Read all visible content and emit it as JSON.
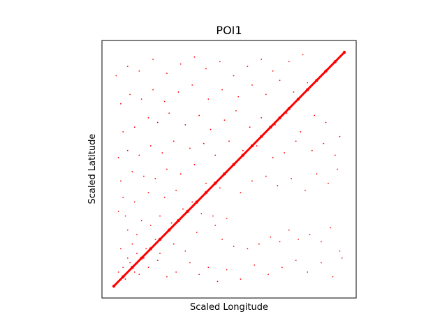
{
  "chart_data": {
    "type": "scatter",
    "title": "POI1",
    "xlabel": "Scaled Longitude",
    "ylabel": "Scaled Latitude",
    "xlim": [
      0,
      1
    ],
    "ylim": [
      0,
      1
    ],
    "x_ticks_visible": false,
    "y_ticks_visible": false,
    "grid": false,
    "legend": "none",
    "marker_color": "#ff0000",
    "series": [
      {
        "kind": "diagonal_dense_points",
        "x": [
          0.0,
          0.04,
          0.08,
          0.12,
          0.16,
          0.2,
          0.24,
          0.28,
          0.32,
          0.36,
          0.4,
          0.44,
          0.48,
          0.52,
          0.56,
          0.6,
          0.64,
          0.68,
          0.72,
          0.76,
          0.8,
          0.84,
          0.88,
          0.92,
          0.96,
          1.0
        ],
        "y": [
          0.0,
          0.04,
          0.08,
          0.12,
          0.16,
          0.2,
          0.24,
          0.28,
          0.32,
          0.36,
          0.4,
          0.44,
          0.48,
          0.52,
          0.56,
          0.6,
          0.64,
          0.68,
          0.72,
          0.76,
          0.8,
          0.84,
          0.88,
          0.92,
          0.96,
          1.0
        ]
      },
      {
        "kind": "scattered_points",
        "points": [
          [
            0.02,
            0.06
          ],
          [
            0.04,
            0.08
          ],
          [
            0.05,
            0.03
          ],
          [
            0.07,
            0.1
          ],
          [
            0.09,
            0.06
          ],
          [
            0.11,
            0.05
          ],
          [
            0.13,
            0.12
          ],
          [
            0.03,
            0.16
          ],
          [
            0.08,
            0.18
          ],
          [
            0.14,
            0.16
          ],
          [
            0.06,
            0.24
          ],
          [
            0.1,
            0.22
          ],
          [
            0.18,
            0.2
          ],
          [
            0.02,
            0.32
          ],
          [
            0.05,
            0.3
          ],
          [
            0.12,
            0.28
          ],
          [
            0.16,
            0.26
          ],
          [
            0.2,
            0.3
          ],
          [
            0.25,
            0.27
          ],
          [
            0.3,
            0.33
          ],
          [
            0.04,
            0.38
          ],
          [
            0.09,
            0.36
          ],
          [
            0.15,
            0.4
          ],
          [
            0.22,
            0.38
          ],
          [
            0.27,
            0.41
          ],
          [
            0.34,
            0.36
          ],
          [
            0.38,
            0.31
          ],
          [
            0.43,
            0.3
          ],
          [
            0.47,
            0.2
          ],
          [
            0.52,
            0.17
          ],
          [
            0.58,
            0.16
          ],
          [
            0.63,
            0.18
          ],
          [
            0.68,
            0.21
          ],
          [
            0.72,
            0.19
          ],
          [
            0.76,
            0.24
          ],
          [
            0.8,
            0.2
          ],
          [
            0.85,
            0.22
          ],
          [
            0.9,
            0.19
          ],
          [
            0.94,
            0.25
          ],
          [
            0.98,
            0.15
          ],
          [
            0.03,
            0.45
          ],
          [
            0.08,
            0.49
          ],
          [
            0.13,
            0.47
          ],
          [
            0.18,
            0.46
          ],
          [
            0.23,
            0.5
          ],
          [
            0.29,
            0.48
          ],
          [
            0.35,
            0.52
          ],
          [
            0.4,
            0.44
          ],
          [
            0.46,
            0.42
          ],
          [
            0.55,
            0.4
          ],
          [
            0.6,
            0.45
          ],
          [
            0.66,
            0.47
          ],
          [
            0.71,
            0.43
          ],
          [
            0.77,
            0.46
          ],
          [
            0.83,
            0.41
          ],
          [
            0.88,
            0.48
          ],
          [
            0.93,
            0.44
          ],
          [
            0.97,
            0.5
          ],
          [
            0.02,
            0.55
          ],
          [
            0.06,
            0.58
          ],
          [
            0.11,
            0.56
          ],
          [
            0.16,
            0.6
          ],
          [
            0.21,
            0.57
          ],
          [
            0.26,
            0.62
          ],
          [
            0.33,
            0.59
          ],
          [
            0.39,
            0.61
          ],
          [
            0.44,
            0.56
          ],
          [
            0.5,
            0.62
          ],
          [
            0.56,
            0.58
          ],
          [
            0.62,
            0.6
          ],
          [
            0.69,
            0.55
          ],
          [
            0.74,
            0.57
          ],
          [
            0.79,
            0.62
          ],
          [
            0.86,
            0.58
          ],
          [
            0.91,
            0.61
          ],
          [
            0.96,
            0.56
          ],
          [
            0.04,
            0.66
          ],
          [
            0.09,
            0.68
          ],
          [
            0.15,
            0.72
          ],
          [
            0.19,
            0.7
          ],
          [
            0.24,
            0.74
          ],
          [
            0.31,
            0.69
          ],
          [
            0.37,
            0.73
          ],
          [
            0.42,
            0.67
          ],
          [
            0.48,
            0.71
          ],
          [
            0.53,
            0.75
          ],
          [
            0.59,
            0.68
          ],
          [
            0.64,
            0.72
          ],
          [
            0.7,
            0.69
          ],
          [
            0.75,
            0.74
          ],
          [
            0.81,
            0.66
          ],
          [
            0.87,
            0.73
          ],
          [
            0.92,
            0.7
          ],
          [
            0.98,
            0.64
          ],
          [
            0.03,
            0.78
          ],
          [
            0.07,
            0.82
          ],
          [
            0.12,
            0.8
          ],
          [
            0.17,
            0.84
          ],
          [
            0.22,
            0.79
          ],
          [
            0.28,
            0.83
          ],
          [
            0.34,
            0.86
          ],
          [
            0.41,
            0.8
          ],
          [
            0.47,
            0.84
          ],
          [
            0.54,
            0.81
          ],
          [
            0.6,
            0.86
          ],
          [
            0.66,
            0.82
          ],
          [
            0.72,
            0.88
          ],
          [
            0.78,
            0.83
          ],
          [
            0.84,
            0.87
          ],
          [
            0.01,
            0.9
          ],
          [
            0.06,
            0.94
          ],
          [
            0.11,
            0.92
          ],
          [
            0.17,
            0.97
          ],
          [
            0.23,
            0.91
          ],
          [
            0.29,
            0.95
          ],
          [
            0.35,
            0.98
          ],
          [
            0.4,
            0.93
          ],
          [
            0.46,
            0.96
          ],
          [
            0.52,
            0.9
          ],
          [
            0.58,
            0.94
          ],
          [
            0.64,
            0.97
          ],
          [
            0.69,
            0.92
          ],
          [
            0.76,
            0.96
          ],
          [
            0.82,
            0.99
          ],
          [
            0.06,
            0.12
          ],
          [
            0.1,
            0.14
          ],
          [
            0.15,
            0.08
          ],
          [
            0.19,
            0.11
          ],
          [
            0.23,
            0.04
          ],
          [
            0.27,
            0.06
          ],
          [
            0.33,
            0.1
          ],
          [
            0.37,
            0.05
          ],
          [
            0.41,
            0.08
          ],
          [
            0.45,
            0.02
          ],
          [
            0.49,
            0.07
          ],
          [
            0.55,
            0.03
          ],
          [
            0.61,
            0.09
          ],
          [
            0.67,
            0.05
          ],
          [
            0.73,
            0.08
          ],
          [
            0.79,
            0.11
          ],
          [
            0.84,
            0.06
          ],
          [
            0.9,
            0.1
          ],
          [
            0.95,
            0.04
          ],
          [
            0.99,
            0.12
          ],
          [
            0.2,
            0.14
          ],
          [
            0.26,
            0.18
          ],
          [
            0.31,
            0.15
          ],
          [
            0.36,
            0.23
          ],
          [
            0.44,
            0.26
          ],
          [
            0.49,
            0.29
          ]
        ]
      }
    ]
  }
}
